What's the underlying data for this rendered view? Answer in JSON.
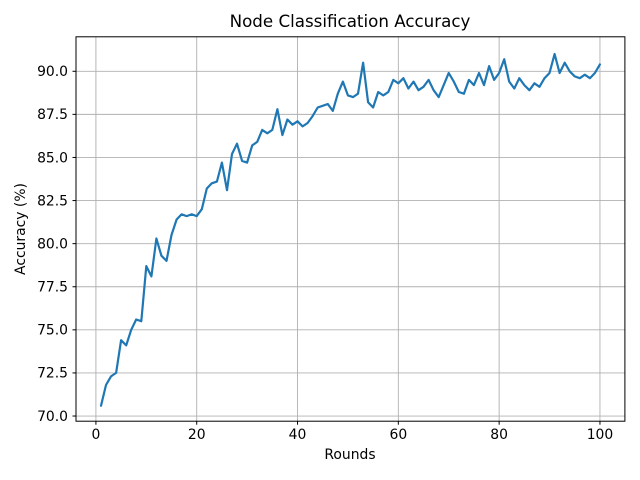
{
  "chart_data": {
    "type": "line",
    "title": "Node Classification Accuracy",
    "xlabel": "Rounds",
    "ylabel": "Accuracy (%)",
    "grid": true,
    "legend": false,
    "xlim": [
      -3.95,
      104.95
    ],
    "ylim": [
      69.7,
      92.0
    ],
    "xticks": [
      0,
      20,
      40,
      60,
      80,
      100
    ],
    "xtick_labels": [
      "0",
      "20",
      "40",
      "60",
      "80",
      "100"
    ],
    "yticks": [
      70.0,
      72.5,
      75.0,
      77.5,
      80.0,
      82.5,
      85.0,
      87.5,
      90.0
    ],
    "ytick_labels": [
      "70.0",
      "72.5",
      "75.0",
      "77.5",
      "80.0",
      "82.5",
      "85.0",
      "87.5",
      "90.0"
    ],
    "series": [
      {
        "name": "accuracy",
        "color": "#1f77b4",
        "line_width": 2,
        "x": [
          1,
          2,
          3,
          4,
          5,
          6,
          7,
          8,
          9,
          10,
          11,
          12,
          13,
          14,
          15,
          16,
          17,
          18,
          19,
          20,
          21,
          22,
          23,
          24,
          25,
          26,
          27,
          28,
          29,
          30,
          31,
          32,
          33,
          34,
          35,
          36,
          37,
          38,
          39,
          40,
          41,
          42,
          43,
          44,
          45,
          46,
          47,
          48,
          49,
          50,
          51,
          52,
          53,
          54,
          55,
          56,
          57,
          58,
          59,
          60,
          61,
          62,
          63,
          64,
          65,
          66,
          67,
          68,
          69,
          70,
          71,
          72,
          73,
          74,
          75,
          76,
          77,
          78,
          79,
          80,
          81,
          82,
          83,
          84,
          85,
          86,
          87,
          88,
          89,
          90,
          91,
          92,
          93,
          94,
          95,
          96,
          97,
          98,
          99,
          100
        ],
        "y": [
          70.6,
          71.8,
          72.3,
          72.5,
          74.4,
          74.1,
          75.0,
          75.6,
          75.5,
          78.7,
          78.1,
          80.3,
          79.3,
          79.0,
          80.5,
          81.4,
          81.7,
          81.6,
          81.7,
          81.6,
          82.0,
          83.2,
          83.5,
          83.6,
          84.7,
          83.1,
          85.2,
          85.8,
          84.8,
          84.7,
          85.7,
          85.9,
          86.6,
          86.4,
          86.6,
          87.8,
          86.3,
          87.2,
          86.9,
          87.1,
          86.8,
          87.0,
          87.4,
          87.9,
          88.0,
          88.1,
          87.7,
          88.7,
          89.4,
          88.6,
          88.5,
          88.7,
          90.5,
          88.2,
          87.9,
          88.8,
          88.6,
          88.8,
          89.5,
          89.3,
          89.6,
          89.0,
          89.4,
          88.9,
          89.1,
          89.5,
          88.9,
          88.5,
          89.2,
          89.9,
          89.4,
          88.8,
          88.7,
          89.5,
          89.2,
          89.9,
          89.2,
          90.3,
          89.5,
          89.9,
          90.7,
          89.4,
          89.0,
          89.6,
          89.2,
          88.9,
          89.3,
          89.1,
          89.6,
          89.9,
          91.0,
          89.9,
          90.5,
          90.0,
          89.7,
          89.6,
          89.8,
          89.6,
          89.9,
          90.4
        ]
      }
    ]
  },
  "colors": {
    "line": "#1f77b4",
    "grid": "#b0b0b0",
    "spine": "#000000",
    "text": "#000000",
    "background": "#ffffff"
  }
}
